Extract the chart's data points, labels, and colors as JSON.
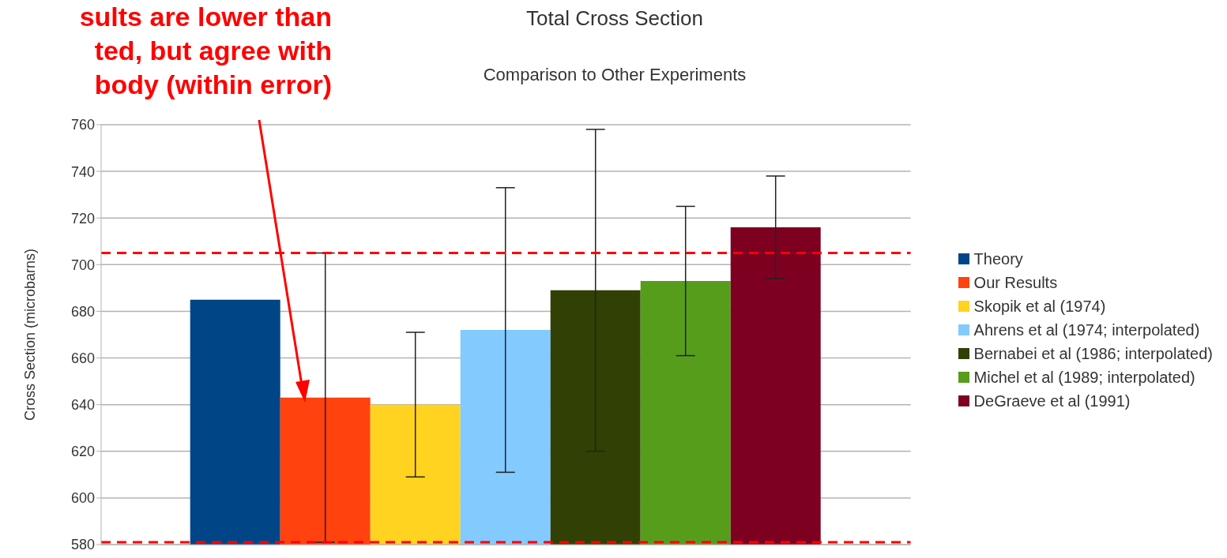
{
  "chart_data": {
    "type": "bar",
    "title": "Total Cross Section",
    "subtitle": "Comparison to Other Experiments",
    "ylabel": "Cross Section (microbarns)",
    "annotations": [
      "sults are lower than\nted, but agree with\nbody (within error)"
    ],
    "categories": [
      null
    ],
    "series": [
      {
        "name": "Theory",
        "color": "#004586",
        "values": [
          685
        ]
      },
      {
        "name": "Our Results",
        "color": "#ff420e",
        "values": [
          643
        ],
        "errors": [
          62
        ]
      },
      {
        "name": "Skopik et al (1974)",
        "color": "#ffd320",
        "values": [
          640
        ],
        "errors": [
          31
        ]
      },
      {
        "name": "Ahrens et al (1974; interpolated)",
        "color": "#83caff",
        "values": [
          672
        ],
        "errors": [
          61
        ]
      },
      {
        "name": "Bernabei et al (1986; interpolated)",
        "color": "#314004",
        "values": [
          689
        ],
        "errors": [
          69
        ]
      },
      {
        "name": "Michel et al (1989; interpolated)",
        "color": "#579d1c",
        "values": [
          693
        ],
        "errors": [
          32
        ]
      },
      {
        "name": "DeGraeve et al (1991)",
        "color": "#7e0021",
        "values": [
          716
        ],
        "errors": [
          22
        ]
      }
    ],
    "ylim": [
      580,
      760
    ],
    "yticks": [
      580,
      600,
      620,
      640,
      660,
      680,
      700,
      720,
      740,
      760
    ],
    "grid": "y",
    "legend": "right",
    "ref_lines": [
      {
        "axis": "y",
        "value": 705,
        "color": "#ff0000",
        "line_style": "dashed"
      },
      {
        "axis": "y",
        "value": 581,
        "color": "#ff0000",
        "line_style": "dashed"
      }
    ]
  }
}
